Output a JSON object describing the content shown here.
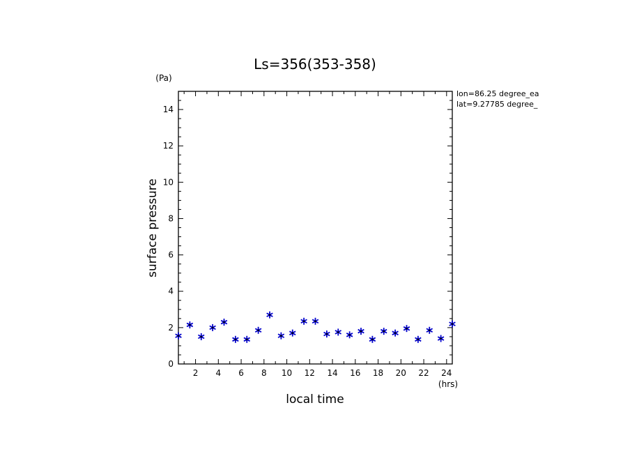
{
  "chart_data": {
    "type": "scatter",
    "title": "Ls=356(353-358)",
    "xlabel": "local time",
    "ylabel": "surface pressure",
    "x_unit": "(hrs)",
    "y_unit": "(Pa)",
    "xlim": [
      0.5,
      24.5
    ],
    "ylim": [
      0,
      15
    ],
    "xticks": [
      2,
      4,
      6,
      8,
      10,
      12,
      14,
      16,
      18,
      20,
      22,
      24
    ],
    "yticks": [
      0,
      2,
      4,
      6,
      8,
      10,
      12,
      14
    ],
    "annotations": [
      "lon=86.25 degree_ea",
      "lat=9.27785 degree_"
    ],
    "marker": "star",
    "marker_color": "#0000cc",
    "series": [
      {
        "name": "surface pressure",
        "x": [
          0.5,
          1.5,
          2.5,
          3.5,
          4.5,
          5.5,
          6.5,
          7.5,
          8.5,
          9.5,
          10.5,
          11.5,
          12.5,
          13.5,
          14.5,
          15.5,
          16.5,
          17.5,
          18.5,
          19.5,
          20.5,
          21.5,
          22.5,
          23.5,
          24.5
        ],
        "y": [
          1.55,
          2.15,
          1.5,
          2.0,
          2.3,
          1.35,
          1.35,
          1.85,
          2.7,
          1.55,
          1.7,
          2.35,
          2.35,
          1.65,
          1.75,
          1.6,
          1.8,
          1.35,
          1.8,
          1.7,
          1.95,
          1.35,
          1.85,
          1.4,
          2.2
        ]
      }
    ]
  }
}
